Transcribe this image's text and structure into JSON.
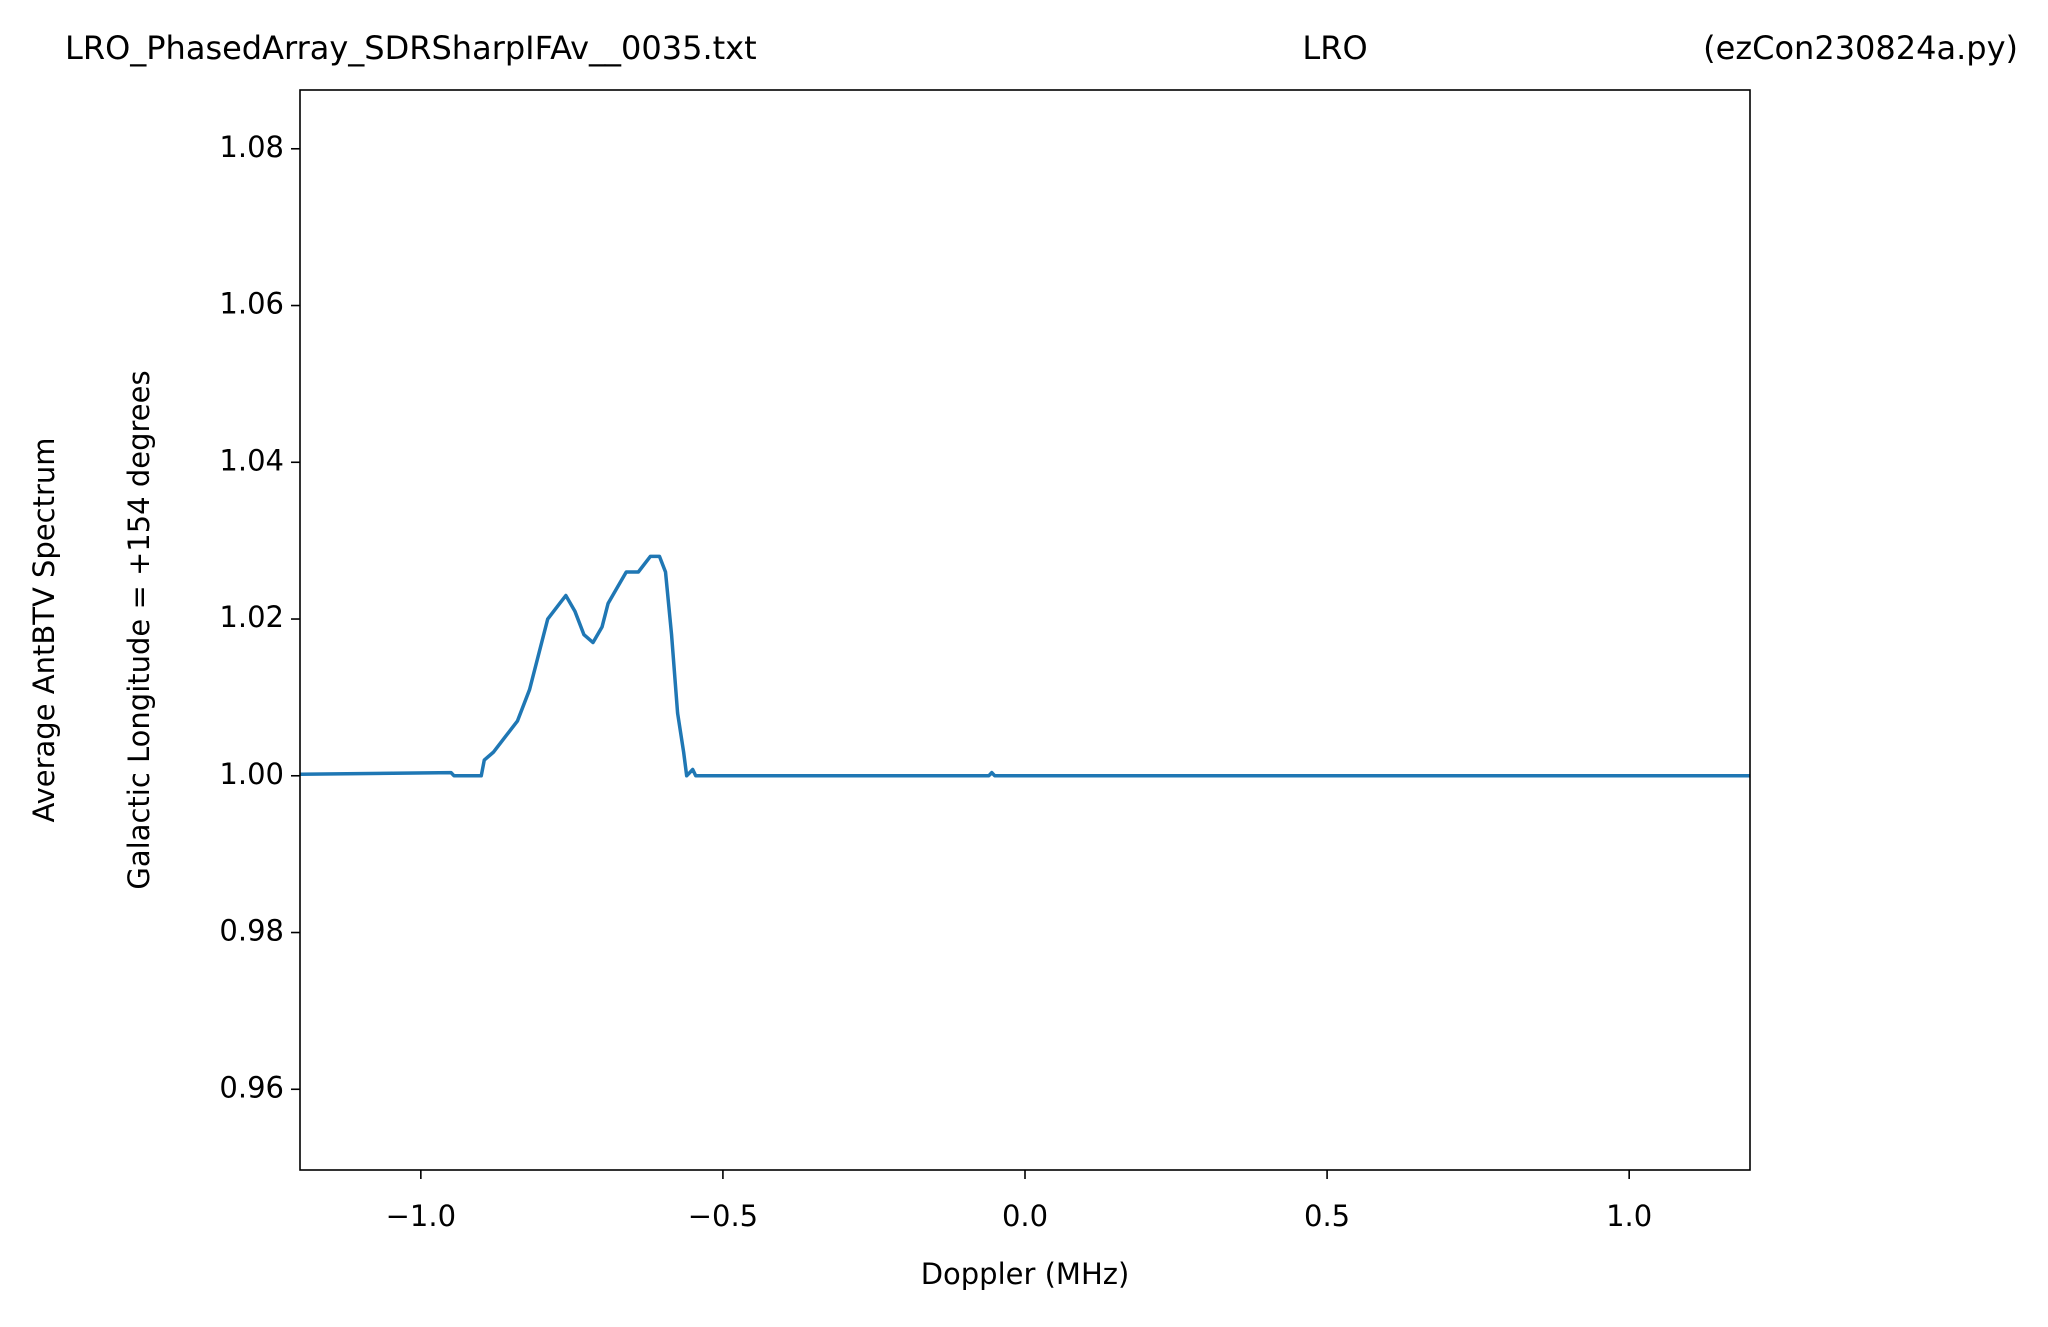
{
  "chart_data": {
    "type": "line",
    "title": [
      "LRO_PhasedArray_SDRSharpIFAv__0035.txt",
      "LRO",
      "(ezCon230824a.py)"
    ],
    "xlabel": "Doppler (MHz)",
    "ylabel": [
      "Average AntBTV Spectrum",
      "Galactic Longitude = +154 degrees"
    ],
    "x": [
      -1.2,
      -0.95,
      -0.945,
      -0.9,
      -0.895,
      -0.88,
      -0.86,
      -0.84,
      -0.82,
      -0.8,
      -0.79,
      -0.77,
      -0.76,
      -0.745,
      -0.73,
      -0.715,
      -0.7,
      -0.69,
      -0.675,
      -0.66,
      -0.64,
      -0.62,
      -0.605,
      -0.595,
      -0.585,
      -0.575,
      -0.565,
      -0.56,
      -0.55,
      -0.545,
      -0.06,
      -0.055,
      -0.05,
      1.2
    ],
    "series": [
      {
        "color": "#1f77b4",
        "values": [
          1.0002,
          1.0004,
          1.0,
          1.0,
          1.002,
          1.003,
          1.005,
          1.007,
          1.011,
          1.017,
          1.02,
          1.022,
          1.023,
          1.021,
          1.018,
          1.017,
          1.019,
          1.022,
          1.024,
          1.026,
          1.026,
          1.028,
          1.028,
          1.026,
          1.018,
          1.008,
          1.003,
          1.0,
          1.0008,
          1.0,
          1.0,
          1.0004,
          1.0,
          1.0
        ]
      }
    ],
    "xlim": [
      -1.2,
      1.2
    ],
    "ylim": [
      0.9497,
      1.0875
    ],
    "xticks": [
      {
        "value": -1.0,
        "label": "−1.0"
      },
      {
        "value": -0.5,
        "label": "−0.5"
      },
      {
        "value": 0,
        "label": "0.0"
      },
      0.5,
      {
        "value": 1.0,
        "label": "1.0"
      }
    ],
    "yticks": [
      0.96,
      0.98,
      {
        "value": 1.0,
        "label": "1.00"
      },
      1.02,
      1.04,
      1.06,
      1.08
    ],
    "grid": false
  }
}
